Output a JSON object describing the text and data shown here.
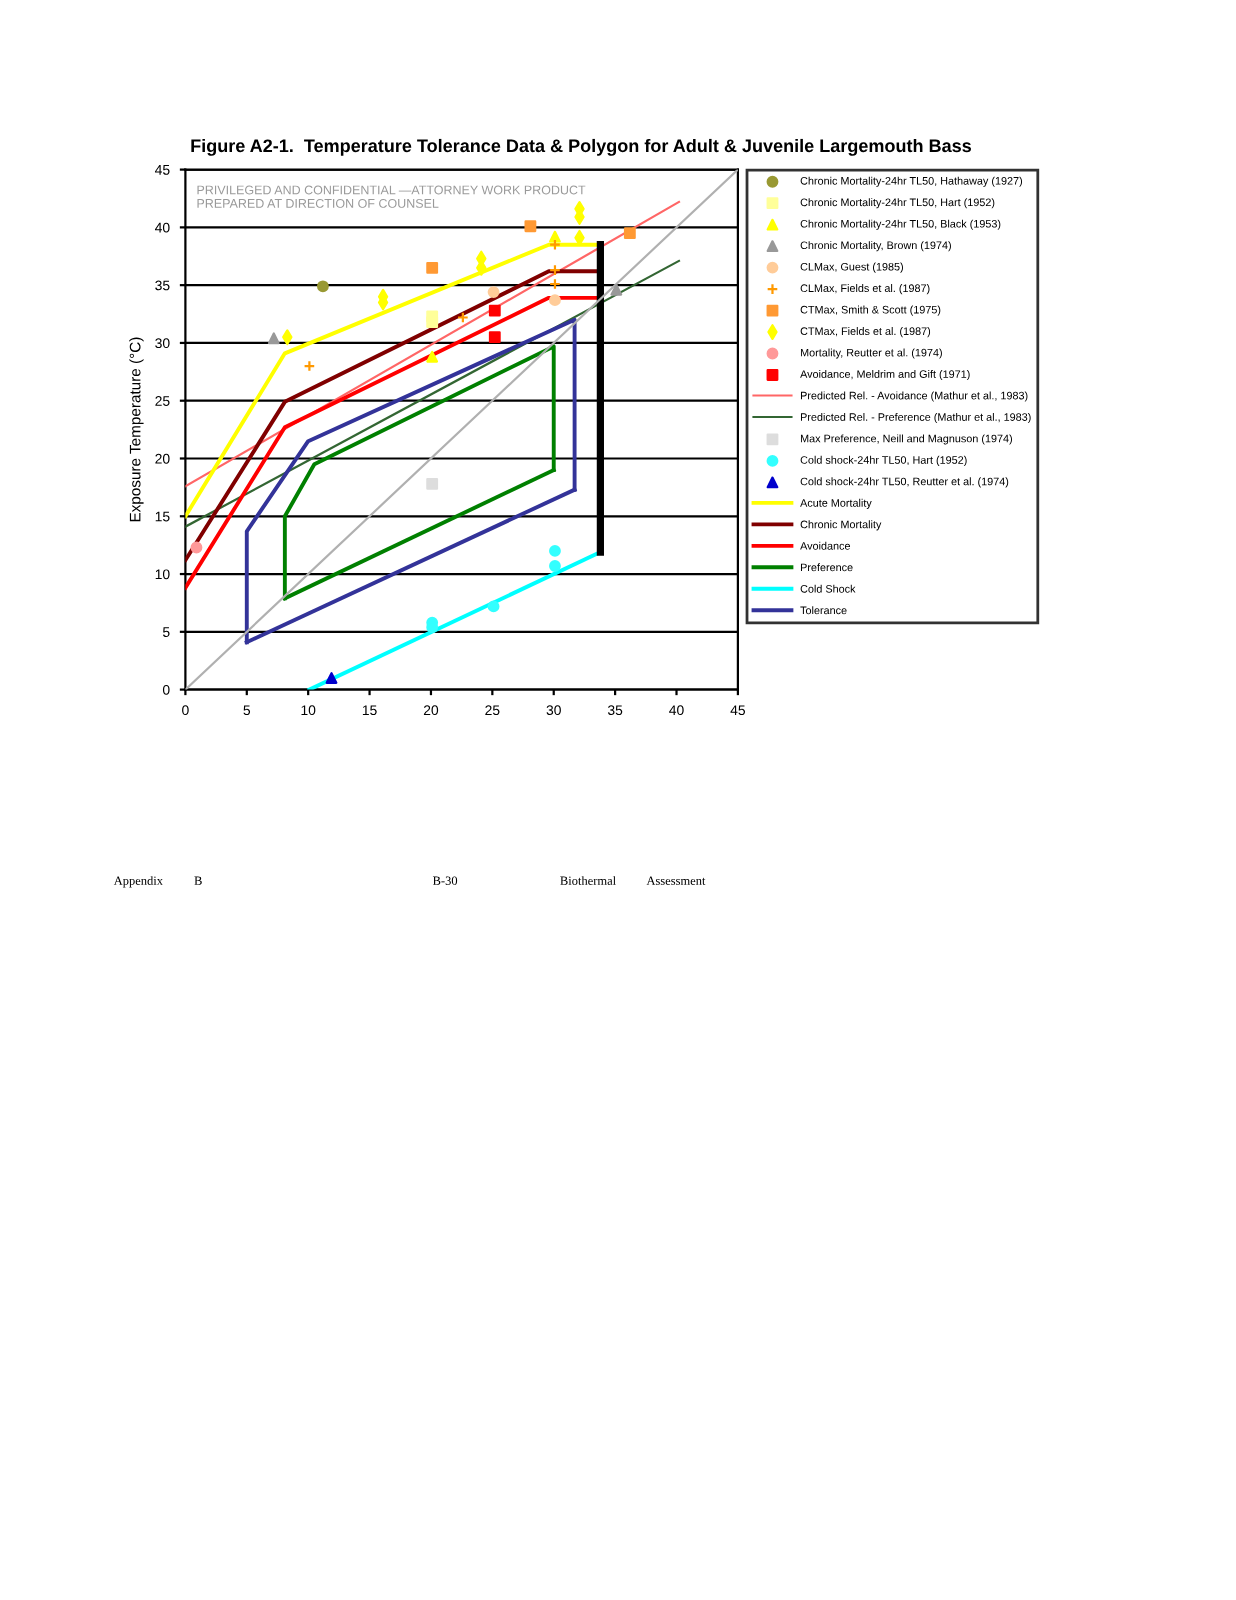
{
  "chart_data": {
    "type": "line",
    "title": "Figure A2-1.  Temperature Tolerance Data & Polygon for Adult & Juvenile Largemouth Bass",
    "ylabel": "Exposure Temperature (°C)",
    "xlim": [
      0,
      45
    ],
    "ylim": [
      0,
      45
    ],
    "xticks": [
      0,
      5,
      10,
      15,
      20,
      25,
      30,
      35,
      40,
      45
    ],
    "yticks": [
      0,
      5,
      10,
      15,
      20,
      25,
      30,
      35,
      40,
      45
    ],
    "grid": "y",
    "legend": "right",
    "annotations": [
      "PRIVILEGED AND CONFIDENTIAL —ATTORNEY WORK PRODUCT\nPREPARED AT DIRECTION OF COUNSEL",
      "Appendix",
      "B",
      "B-30",
      "Biothermal",
      "Assessment"
    ],
    "series": [
      {
        "name": "Chronic Mortality-24hr TL50, Hathaway (1927)",
        "type": "scatter",
        "marker": "circle",
        "color": "#999933",
        "x": [
          11.2
        ],
        "values": [
          34.9
        ]
      },
      {
        "name": "Chronic Mortality-24hr TL50, Hart (1952)",
        "type": "scatter",
        "marker": "square",
        "color": "#ffff99",
        "x": [
          20.1,
          20.1
        ],
        "values": [
          32.3,
          31.8
        ]
      },
      {
        "name": "Chronic Mortality-24hr TL50, Black (1953)",
        "type": "scatter",
        "marker": "triangle",
        "color": "#ffff00",
        "x": [
          20.1,
          30.1
        ],
        "values": [
          28.8,
          39.2
        ]
      },
      {
        "name": "Chronic Mortality, Brown (1974)",
        "type": "scatter",
        "marker": "triangle",
        "color": "#999999",
        "x": [
          7.2,
          35.1
        ],
        "values": [
          30.4,
          34.6
        ]
      },
      {
        "name": "CLMax, Guest (1985)",
        "type": "scatter",
        "marker": "circle",
        "color": "#ffcc99",
        "x": [
          25.1,
          30.1
        ],
        "values": [
          34.4,
          33.7
        ]
      },
      {
        "name": "CLMax, Fields et al. (1987)",
        "type": "scatter",
        "marker": "cross",
        "color": "#ff9900",
        "x": [
          10.1,
          22.6,
          30.1,
          30.1,
          30.1
        ],
        "values": [
          28.0,
          32.2,
          36.3,
          35.1,
          38.5
        ]
      },
      {
        "name": "CTMax, Smith & Scott (1975)",
        "type": "scatter",
        "marker": "square",
        "color": "#ff9933",
        "x": [
          20.1,
          28.1,
          36.2
        ],
        "values": [
          36.5,
          40.1,
          39.5
        ]
      },
      {
        "name": "CTMax, Fields et al. (1987)",
        "type": "scatter",
        "marker": "diamond",
        "color": "#ffff00",
        "x": [
          8.3,
          16.1,
          16.1,
          24.1,
          24.1,
          32.1,
          32.1,
          32.1
        ],
        "values": [
          30.5,
          34.0,
          33.5,
          37.3,
          36.5,
          41.6,
          40.9,
          39.1
        ]
      },
      {
        "name": "Mortality, Reutter et al. (1974)",
        "type": "scatter",
        "marker": "circle",
        "color": "#ff9999",
        "x": [
          0.9
        ],
        "values": [
          12.3
        ]
      },
      {
        "name": "Avoidance, Meldrim and Gift (1971)",
        "type": "scatter",
        "marker": "square",
        "color": "#ff0000",
        "x": [
          25.2,
          25.2
        ],
        "values": [
          32.8,
          30.5
        ]
      },
      {
        "name": "Predicted Rel. - Avoidance (Mathur et al., 1983)",
        "color": "#ff6666",
        "x": [
          0,
          40.2
        ],
        "values": [
          17.6,
          42.2
        ]
      },
      {
        "name": "Predicted Rel. - Preference (Mathur et al., 1983)",
        "color": "#336633",
        "x": [
          0,
          40.2
        ],
        "values": [
          14.1,
          37.1
        ]
      },
      {
        "name": "Max Preference, Neill and Magnuson (1974)",
        "type": "scatter",
        "marker": "square",
        "color": "#dddddd",
        "x": [
          20.1
        ],
        "values": [
          17.8
        ]
      },
      {
        "name": "Cold shock-24hr TL50, Hart (1952)",
        "type": "scatter",
        "marker": "circle",
        "color": "#33ffff",
        "x": [
          20.1,
          20.1,
          25.1,
          30.1,
          30.1
        ],
        "values": [
          5.8,
          5.4,
          7.2,
          12.0,
          10.7
        ]
      },
      {
        "name": "Cold shock-24hr TL50, Reutter et al. (1974)",
        "type": "scatter",
        "marker": "triangle",
        "color": "#0000cc",
        "x": [
          11.9
        ],
        "values": [
          1.0
        ]
      },
      {
        "name": "Acute Mortality",
        "color": "#ffff00",
        "x": [
          0,
          8.1,
          29.6,
          33.8
        ],
        "values": [
          15.0,
          29.1,
          38.5,
          38.5
        ]
      },
      {
        "name": "Chronic Mortality",
        "color": "#800000",
        "x": [
          0,
          8.1,
          29.6,
          33.5
        ],
        "values": [
          11.2,
          24.9,
          36.2,
          36.2
        ]
      },
      {
        "name": "Avoidance",
        "color": "#ff0000",
        "x": [
          0,
          8.1,
          29.6,
          33.8
        ],
        "values": [
          8.8,
          22.7,
          33.9,
          33.9
        ]
      },
      {
        "name": "Preference",
        "color": "#008000",
        "x": [
          8.1,
          8.1,
          10.5,
          30.0,
          30.0
        ],
        "values": [
          7.9,
          15.0,
          19.5,
          29.7,
          19.0
        ]
      },
      {
        "color": "#008000",
        "x": [
          8.1,
          30.0
        ],
        "values": [
          7.9,
          19.0
        ]
      },
      {
        "name": "Cold Shock",
        "color": "#00ffff",
        "x": [
          10.1,
          33.8
        ],
        "values": [
          0,
          11.9
        ]
      },
      {
        "name": "Tolerance",
        "color": "#333399",
        "x": [
          5.0,
          5.0,
          10.0,
          31.7,
          31.7
        ],
        "values": [
          4.1,
          13.7,
          21.5,
          32.0,
          17.3
        ]
      },
      {
        "color": "#333399",
        "x": [
          5.0,
          31.7
        ],
        "values": [
          4.1,
          17.3
        ]
      },
      {
        "color": "#000000",
        "x": [
          33.8,
          33.8
        ],
        "values": [
          11.9,
          38.5
        ]
      },
      {
        "color": "#b0b0b0",
        "x": [
          0,
          45
        ],
        "values": [
          0,
          45
        ]
      }
    ]
  }
}
